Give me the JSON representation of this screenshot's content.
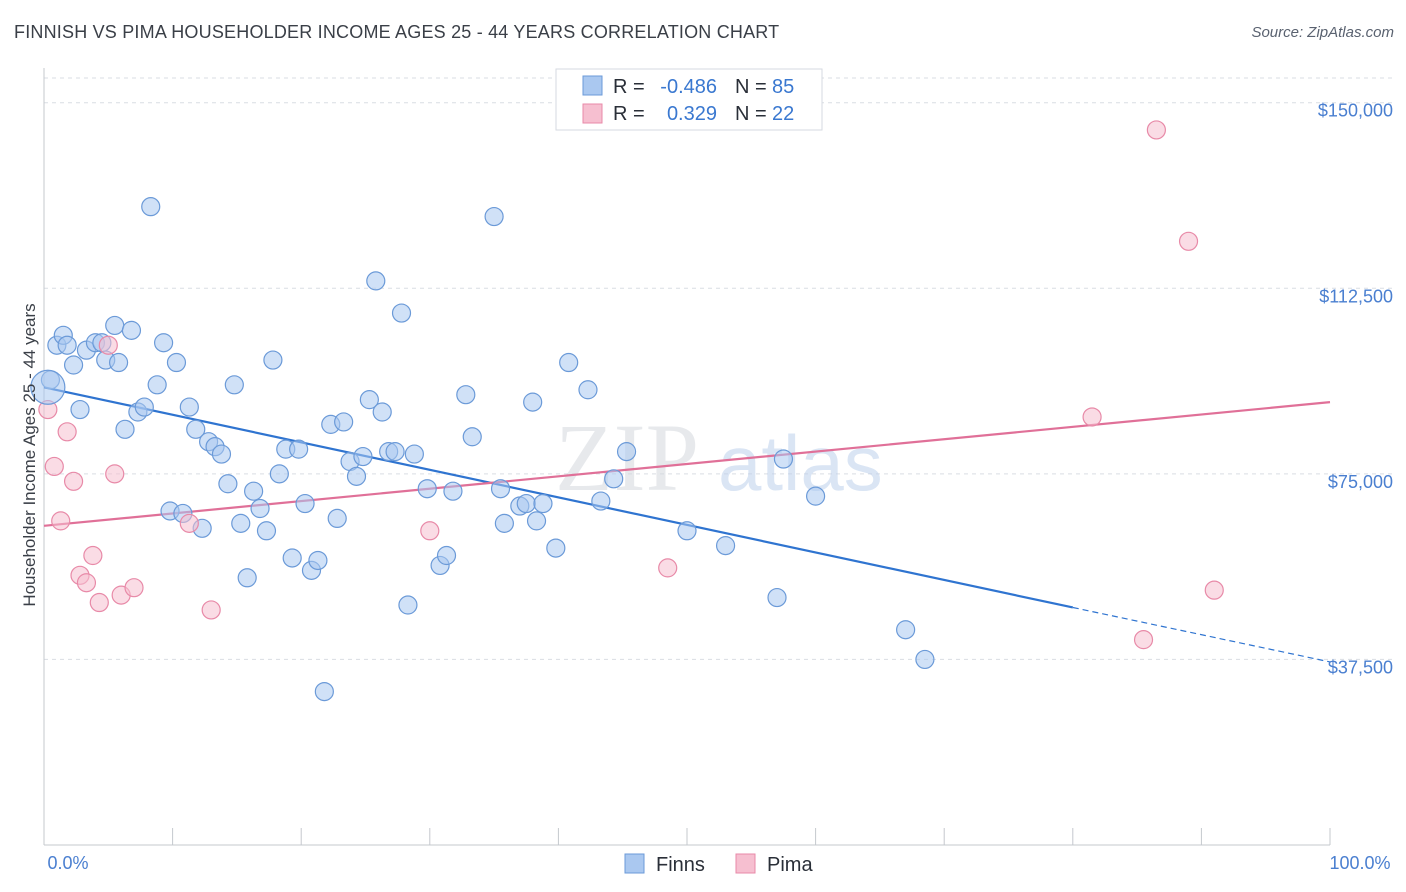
{
  "title": "FINNISH VS PIMA HOUSEHOLDER INCOME AGES 25 - 44 YEARS CORRELATION CHART",
  "source": "Source: ZipAtlas.com",
  "watermark": {
    "zip": "ZIP",
    "atlas": "atlas"
  },
  "colors": {
    "finns_fill": "#aac8f0",
    "finns_stroke": "#6b9ad8",
    "finns_line": "#2f74d0",
    "pima_fill": "#f6bfd0",
    "pima_stroke": "#e88aa8",
    "pima_line": "#e07098",
    "grid": "#d9dde3",
    "axis_text": "#4a7fd0"
  },
  "legend": {
    "rows": [
      {
        "r_label": "R =",
        "r_value": "-0.486",
        "n_label": "N =",
        "n_value": "85"
      },
      {
        "r_label": "R =",
        "r_value": "0.329",
        "n_label": "N =",
        "n_value": "22"
      }
    ]
  },
  "chart_data": {
    "type": "scatter",
    "title": "FINNISH VS PIMA HOUSEHOLDER INCOME AGES 25 - 44 YEARS CORRELATION CHART",
    "xlabel": "",
    "ylabel": "Householder Income Ages 25 - 44 years",
    "xlim": [
      0,
      100
    ],
    "ylim": [
      0,
      155000
    ],
    "x_tick_labels": [
      "0.0%",
      "100.0%"
    ],
    "y_ticks": [
      37500,
      75000,
      112500,
      150000
    ],
    "y_tick_labels": [
      "$37,500",
      "$75,000",
      "$112,500",
      "$150,000"
    ],
    "grid": true,
    "legend_position": "top-center",
    "series": [
      {
        "name": "Finns",
        "r": -0.486,
        "n": 85,
        "trend": {
          "x0": 0,
          "y0": 92500,
          "x1": 80,
          "y1": 48000,
          "dash_to_x": 100,
          "dash_to_y": 37000
        },
        "points": [
          [
            0.5,
            94000
          ],
          [
            1.0,
            101000
          ],
          [
            1.5,
            103000
          ],
          [
            1.8,
            101000
          ],
          [
            2.3,
            97000
          ],
          [
            2.8,
            88000
          ],
          [
            3.3,
            100000
          ],
          [
            4.0,
            101500
          ],
          [
            4.5,
            101500
          ],
          [
            4.8,
            98000
          ],
          [
            5.5,
            105000
          ],
          [
            5.8,
            97500
          ],
          [
            6.3,
            84000
          ],
          [
            6.8,
            104000
          ],
          [
            7.3,
            87500
          ],
          [
            7.8,
            88500
          ],
          [
            8.3,
            129000
          ],
          [
            8.8,
            93000
          ],
          [
            9.3,
            101500
          ],
          [
            9.8,
            67500
          ],
          [
            10.3,
            97500
          ],
          [
            10.8,
            67000
          ],
          [
            11.3,
            88500
          ],
          [
            11.8,
            84000
          ],
          [
            12.3,
            64000
          ],
          [
            12.8,
            81500
          ],
          [
            13.3,
            80500
          ],
          [
            13.8,
            79000
          ],
          [
            14.3,
            73000
          ],
          [
            14.8,
            93000
          ],
          [
            15.3,
            65000
          ],
          [
            15.8,
            54000
          ],
          [
            16.3,
            71500
          ],
          [
            16.8,
            68000
          ],
          [
            17.3,
            63500
          ],
          [
            17.8,
            98000
          ],
          [
            18.3,
            75000
          ],
          [
            18.8,
            80000
          ],
          [
            19.3,
            58000
          ],
          [
            19.8,
            80000
          ],
          [
            20.3,
            69000
          ],
          [
            20.8,
            55500
          ],
          [
            21.3,
            57500
          ],
          [
            21.8,
            31000
          ],
          [
            22.3,
            85000
          ],
          [
            22.8,
            66000
          ],
          [
            23.3,
            85500
          ],
          [
            23.8,
            77500
          ],
          [
            24.3,
            74500
          ],
          [
            24.8,
            78500
          ],
          [
            25.3,
            90000
          ],
          [
            25.8,
            114000
          ],
          [
            26.3,
            87500
          ],
          [
            26.8,
            79500
          ],
          [
            27.3,
            79500
          ],
          [
            27.8,
            107500
          ],
          [
            28.3,
            48500
          ],
          [
            28.8,
            79000
          ],
          [
            29.8,
            72000
          ],
          [
            30.8,
            56500
          ],
          [
            31.3,
            58500
          ],
          [
            31.8,
            71500
          ],
          [
            32.8,
            91000
          ],
          [
            33.3,
            82500
          ],
          [
            35.0,
            127000
          ],
          [
            35.5,
            72000
          ],
          [
            35.8,
            65000
          ],
          [
            37.0,
            68500
          ],
          [
            37.5,
            69000
          ],
          [
            38.0,
            89500
          ],
          [
            38.3,
            65500
          ],
          [
            38.8,
            69000
          ],
          [
            39.8,
            60000
          ],
          [
            40.8,
            97500
          ],
          [
            42.3,
            92000
          ],
          [
            43.3,
            69500
          ],
          [
            44.3,
            74000
          ],
          [
            45.3,
            79500
          ],
          [
            50.0,
            63500
          ],
          [
            53.0,
            60500
          ],
          [
            57.0,
            50000
          ],
          [
            57.5,
            78000
          ],
          [
            60.0,
            70500
          ],
          [
            67.0,
            43500
          ],
          [
            68.5,
            37500
          ]
        ]
      },
      {
        "name": "Pima",
        "r": 0.329,
        "n": 22,
        "trend": {
          "x0": 0,
          "y0": 64500,
          "x1": 100,
          "y1": 89500
        },
        "points": [
          [
            0.3,
            88000
          ],
          [
            0.8,
            76500
          ],
          [
            1.3,
            65500
          ],
          [
            1.8,
            83500
          ],
          [
            2.3,
            73500
          ],
          [
            2.8,
            54500
          ],
          [
            3.3,
            53000
          ],
          [
            3.8,
            58500
          ],
          [
            4.3,
            49000
          ],
          [
            5.0,
            101000
          ],
          [
            5.5,
            75000
          ],
          [
            6.0,
            50500
          ],
          [
            7.0,
            52000
          ],
          [
            11.3,
            65000
          ],
          [
            13.0,
            47500
          ],
          [
            30.0,
            63500
          ],
          [
            48.5,
            56000
          ],
          [
            81.5,
            86500
          ],
          [
            85.5,
            41500
          ],
          [
            86.5,
            144500
          ],
          [
            89.0,
            122000
          ],
          [
            91.0,
            51500
          ]
        ]
      }
    ]
  },
  "bottom_legend": [
    {
      "label": "Finns"
    },
    {
      "label": "Pima"
    }
  ]
}
